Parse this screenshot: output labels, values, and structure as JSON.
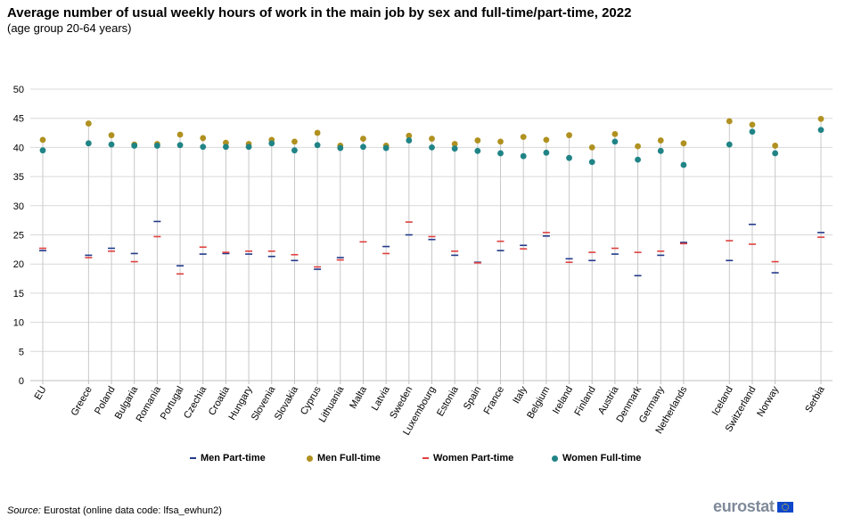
{
  "title": "Average number of usual weekly hours of work in the main job by sex and full-time/part-time, 2022",
  "subtitle": "(age group 20-64 years)",
  "source": {
    "label": "Source:",
    "text": " Eurostat (online data code: lfsa_ewhun2)"
  },
  "logo_text": "eurostat",
  "colors": {
    "men_part_time": "#233a8b",
    "men_full_time": "#b09120",
    "women_part_time": "#e04040",
    "women_full_time": "#208486",
    "grid": "#d9d9d9",
    "country_line": "#c8c8c8"
  },
  "chart_data": {
    "type": "scatter",
    "ylim": [
      0,
      50
    ],
    "yticks": [
      0,
      5,
      10,
      15,
      20,
      25,
      30,
      35,
      40,
      45,
      50
    ],
    "grid": true,
    "legend_position": "bottom",
    "categories": [
      "EU",
      "Greece",
      "Poland",
      "Bulgaria",
      "Romania",
      "Portugal",
      "Czechia",
      "Croatia",
      "Hungary",
      "Slovenia",
      "Slovakia",
      "Cyprus",
      "Lithuania",
      "Malta",
      "Latvia",
      "Sweden",
      "Luxembourg",
      "Estonia",
      "Spain",
      "France",
      "Italy",
      "Belgium",
      "Ireland",
      "Finland",
      "Austria",
      "Denmark",
      "Germany",
      "Netherlands",
      "Iceland",
      "Switzerland",
      "Norway",
      "Serbia"
    ],
    "group_breaks_after": [
      "EU",
      "Netherlands",
      "Norway"
    ],
    "series": [
      {
        "name": "Men Part-time",
        "marker": "dash",
        "color": "#233a8b",
        "values": [
          22.3,
          21.5,
          22.7,
          21.8,
          27.3,
          19.7,
          21.7,
          21.8,
          21.7,
          21.3,
          20.6,
          19.1,
          21.1,
          null,
          23.0,
          25.0,
          24.2,
          21.5,
          20.3,
          22.3,
          23.2,
          24.8,
          20.9,
          20.6,
          21.7,
          18.0,
          21.5,
          23.7,
          20.6,
          26.8,
          18.5,
          25.4
        ]
      },
      {
        "name": "Men Full-time",
        "marker": "dot",
        "color": "#b09120",
        "values": [
          41.3,
          44.1,
          42.1,
          40.5,
          40.6,
          42.2,
          41.6,
          40.8,
          40.6,
          41.3,
          41.0,
          42.5,
          40.3,
          41.5,
          40.3,
          42.0,
          41.5,
          40.6,
          41.2,
          41.0,
          41.8,
          41.3,
          42.1,
          40.0,
          42.3,
          40.2,
          41.2,
          40.7,
          44.5,
          43.9,
          40.3,
          44.9
        ]
      },
      {
        "name": "Women Part-time",
        "marker": "dash",
        "color": "#e04040",
        "values": [
          22.7,
          21.1,
          22.2,
          20.4,
          24.7,
          18.3,
          22.9,
          22.0,
          22.2,
          22.2,
          21.6,
          19.5,
          20.7,
          23.8,
          21.8,
          27.2,
          24.7,
          22.2,
          20.2,
          23.9,
          22.6,
          25.4,
          20.3,
          22.0,
          22.7,
          22.0,
          22.2,
          23.5,
          24.0,
          23.4,
          20.4,
          24.6
        ]
      },
      {
        "name": "Women Full-time",
        "marker": "dot",
        "color": "#208486",
        "values": [
          39.5,
          40.7,
          40.5,
          40.3,
          40.3,
          40.4,
          40.1,
          40.1,
          40.1,
          40.7,
          39.5,
          40.4,
          39.9,
          40.1,
          39.9,
          41.2,
          40.0,
          39.8,
          39.4,
          39.0,
          38.5,
          39.1,
          38.2,
          37.5,
          41.0,
          37.9,
          39.4,
          37.0,
          40.5,
          42.7,
          39.0,
          43.0
        ]
      }
    ]
  }
}
